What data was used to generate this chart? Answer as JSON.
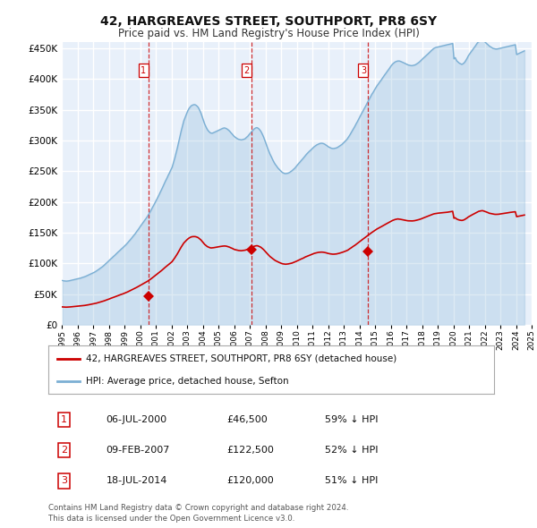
{
  "title": "42, HARGREAVES STREET, SOUTHPORT, PR8 6SY",
  "subtitle": "Price paid vs. HM Land Registry's House Price Index (HPI)",
  "title_fontsize": 10,
  "subtitle_fontsize": 8.5,
  "ylim": [
    0,
    460000
  ],
  "yticks": [
    0,
    50000,
    100000,
    150000,
    200000,
    250000,
    300000,
    350000,
    400000,
    450000
  ],
  "bg_color": "#ffffff",
  "plot_bg_color": "#e8f0fa",
  "grid_color": "#ffffff",
  "hpi_color": "#7bafd4",
  "price_color": "#cc0000",
  "legend_label_price": "42, HARGREAVES STREET, SOUTHPORT, PR8 6SY (detached house)",
  "legend_label_hpi": "HPI: Average price, detached house, Sefton",
  "transactions": [
    {
      "num": 1,
      "date": "06-JUL-2000",
      "year": 2000.52,
      "price": 46500,
      "pct": "59%",
      "dir": "↓"
    },
    {
      "num": 2,
      "date": "09-FEB-2007",
      "year": 2007.11,
      "price": 122500,
      "pct": "52%",
      "dir": "↓"
    },
    {
      "num": 3,
      "date": "18-JUL-2014",
      "year": 2014.55,
      "price": 120000,
      "pct": "51%",
      "dir": "↓"
    }
  ],
  "footer1": "Contains HM Land Registry data © Crown copyright and database right 2024.",
  "footer2": "This data is licensed under the Open Government Licence v3.0.",
  "hpi_data_years": [
    1995.04,
    1995.12,
    1995.21,
    1995.29,
    1995.38,
    1995.46,
    1995.54,
    1995.62,
    1995.71,
    1995.79,
    1995.88,
    1995.96,
    1996.04,
    1996.12,
    1996.21,
    1996.29,
    1996.38,
    1996.46,
    1996.54,
    1996.62,
    1996.71,
    1996.79,
    1996.88,
    1996.96,
    1997.04,
    1997.12,
    1997.21,
    1997.29,
    1997.38,
    1997.46,
    1997.54,
    1997.62,
    1997.71,
    1997.79,
    1997.88,
    1997.96,
    1998.04,
    1998.12,
    1998.21,
    1998.29,
    1998.38,
    1998.46,
    1998.54,
    1998.62,
    1998.71,
    1998.79,
    1998.88,
    1998.96,
    1999.04,
    1999.12,
    1999.21,
    1999.29,
    1999.38,
    1999.46,
    1999.54,
    1999.62,
    1999.71,
    1999.79,
    1999.88,
    1999.96,
    2000.04,
    2000.12,
    2000.21,
    2000.29,
    2000.38,
    2000.46,
    2000.54,
    2000.62,
    2000.71,
    2000.79,
    2000.88,
    2000.96,
    2001.04,
    2001.12,
    2001.21,
    2001.29,
    2001.38,
    2001.46,
    2001.54,
    2001.62,
    2001.71,
    2001.79,
    2001.88,
    2001.96,
    2002.04,
    2002.12,
    2002.21,
    2002.29,
    2002.38,
    2002.46,
    2002.54,
    2002.62,
    2002.71,
    2002.79,
    2002.88,
    2002.96,
    2003.04,
    2003.12,
    2003.21,
    2003.29,
    2003.38,
    2003.46,
    2003.54,
    2003.62,
    2003.71,
    2003.79,
    2003.88,
    2003.96,
    2004.04,
    2004.12,
    2004.21,
    2004.29,
    2004.38,
    2004.46,
    2004.54,
    2004.62,
    2004.71,
    2004.79,
    2004.88,
    2004.96,
    2005.04,
    2005.12,
    2005.21,
    2005.29,
    2005.38,
    2005.46,
    2005.54,
    2005.62,
    2005.71,
    2005.79,
    2005.88,
    2005.96,
    2006.04,
    2006.12,
    2006.21,
    2006.29,
    2006.38,
    2006.46,
    2006.54,
    2006.62,
    2006.71,
    2006.79,
    2006.88,
    2006.96,
    2007.04,
    2007.12,
    2007.21,
    2007.29,
    2007.38,
    2007.46,
    2007.54,
    2007.62,
    2007.71,
    2007.79,
    2007.88,
    2007.96,
    2008.04,
    2008.12,
    2008.21,
    2008.29,
    2008.38,
    2008.46,
    2008.54,
    2008.62,
    2008.71,
    2008.79,
    2008.88,
    2008.96,
    2009.04,
    2009.12,
    2009.21,
    2009.29,
    2009.38,
    2009.46,
    2009.54,
    2009.62,
    2009.71,
    2009.79,
    2009.88,
    2009.96,
    2010.04,
    2010.12,
    2010.21,
    2010.29,
    2010.38,
    2010.46,
    2010.54,
    2010.62,
    2010.71,
    2010.79,
    2010.88,
    2010.96,
    2011.04,
    2011.12,
    2011.21,
    2011.29,
    2011.38,
    2011.46,
    2011.54,
    2011.62,
    2011.71,
    2011.79,
    2011.88,
    2011.96,
    2012.04,
    2012.12,
    2012.21,
    2012.29,
    2012.38,
    2012.46,
    2012.54,
    2012.62,
    2012.71,
    2012.79,
    2012.88,
    2012.96,
    2013.04,
    2013.12,
    2013.21,
    2013.29,
    2013.38,
    2013.46,
    2013.54,
    2013.62,
    2013.71,
    2013.79,
    2013.88,
    2013.96,
    2014.04,
    2014.12,
    2014.21,
    2014.29,
    2014.38,
    2014.46,
    2014.54,
    2014.62,
    2014.71,
    2014.79,
    2014.88,
    2014.96,
    2015.04,
    2015.12,
    2015.21,
    2015.29,
    2015.38,
    2015.46,
    2015.54,
    2015.62,
    2015.71,
    2015.79,
    2015.88,
    2015.96,
    2016.04,
    2016.12,
    2016.21,
    2016.29,
    2016.38,
    2016.46,
    2016.54,
    2016.62,
    2016.71,
    2016.79,
    2016.88,
    2016.96,
    2017.04,
    2017.12,
    2017.21,
    2017.29,
    2017.38,
    2017.46,
    2017.54,
    2017.62,
    2017.71,
    2017.79,
    2017.88,
    2017.96,
    2018.04,
    2018.12,
    2018.21,
    2018.29,
    2018.38,
    2018.46,
    2018.54,
    2018.62,
    2018.71,
    2018.79,
    2018.88,
    2018.96,
    2019.04,
    2019.12,
    2019.21,
    2019.29,
    2019.38,
    2019.46,
    2019.54,
    2019.62,
    2019.71,
    2019.79,
    2019.88,
    2019.96,
    2020.04,
    2020.12,
    2020.21,
    2020.29,
    2020.38,
    2020.46,
    2020.54,
    2020.62,
    2020.71,
    2020.79,
    2020.88,
    2020.96,
    2021.04,
    2021.12,
    2021.21,
    2021.29,
    2021.38,
    2021.46,
    2021.54,
    2021.62,
    2021.71,
    2021.79,
    2021.88,
    2021.96,
    2022.04,
    2022.12,
    2022.21,
    2022.29,
    2022.38,
    2022.46,
    2022.54,
    2022.62,
    2022.71,
    2022.79,
    2022.88,
    2022.96,
    2023.04,
    2023.12,
    2023.21,
    2023.29,
    2023.38,
    2023.46,
    2023.54,
    2023.62,
    2023.71,
    2023.79,
    2023.88,
    2023.96,
    2024.04,
    2024.12,
    2024.21,
    2024.29,
    2024.38,
    2024.46,
    2024.54
  ],
  "hpi_data_values": [
    72000,
    71500,
    71200,
    71000,
    71200,
    71500,
    72000,
    72500,
    73000,
    73500,
    74000,
    74500,
    75000,
    75500,
    76000,
    76800,
    77500,
    78200,
    79000,
    80000,
    81000,
    82000,
    83000,
    84000,
    85000,
    86000,
    87500,
    89000,
    90500,
    92000,
    93500,
    95000,
    97000,
    99000,
    101000,
    103000,
    105000,
    107000,
    109000,
    111000,
    113000,
    115000,
    117000,
    119000,
    121000,
    123000,
    125000,
    127000,
    129000,
    131000,
    133500,
    136000,
    138500,
    141000,
    143500,
    146000,
    149000,
    152000,
    155000,
    158000,
    161000,
    164000,
    167000,
    170000,
    173000,
    176000,
    179500,
    183000,
    187000,
    191000,
    195000,
    199000,
    203000,
    207000,
    211500,
    216000,
    220500,
    225000,
    229500,
    234000,
    238500,
    243000,
    247500,
    252000,
    256000,
    263000,
    271000,
    279000,
    288000,
    297000,
    306000,
    315000,
    324000,
    332000,
    338000,
    343000,
    348000,
    352000,
    355000,
    357000,
    358000,
    358500,
    358000,
    356500,
    354000,
    350000,
    345000,
    339000,
    333000,
    327000,
    322000,
    318000,
    315000,
    313000,
    312000,
    312000,
    313000,
    314000,
    315000,
    316000,
    317000,
    318000,
    319000,
    320000,
    320500,
    320000,
    319000,
    317500,
    315500,
    313000,
    310500,
    308000,
    306000,
    304500,
    303000,
    302000,
    301500,
    301000,
    301500,
    302000,
    303000,
    305000,
    307000,
    309500,
    312000,
    314500,
    317000,
    319000,
    320500,
    321000,
    320000,
    318000,
    315000,
    311000,
    306000,
    300500,
    295000,
    289000,
    283000,
    278000,
    273500,
    269000,
    265000,
    261500,
    258500,
    255500,
    253000,
    251000,
    249000,
    247500,
    246500,
    246000,
    246500,
    247000,
    248000,
    249500,
    251000,
    253000,
    255000,
    257500,
    260000,
    262500,
    265000,
    267500,
    270000,
    272500,
    275000,
    277500,
    280000,
    282000,
    284000,
    286000,
    288000,
    290000,
    291500,
    293000,
    294000,
    295000,
    295500,
    295500,
    295000,
    294000,
    292500,
    291000,
    289500,
    288500,
    287500,
    287000,
    287000,
    287500,
    288000,
    289000,
    290500,
    292000,
    293500,
    295500,
    297500,
    299500,
    302000,
    305000,
    308500,
    312000,
    315500,
    319000,
    323000,
    327000,
    331000,
    335000,
    339000,
    343000,
    347000,
    351000,
    355000,
    359000,
    363000,
    367000,
    371000,
    375000,
    378500,
    382000,
    385500,
    389000,
    392000,
    395000,
    398000,
    401000,
    404000,
    407000,
    410000,
    413000,
    416000,
    419000,
    422000,
    424500,
    426500,
    428000,
    429000,
    429500,
    429500,
    429000,
    428000,
    427000,
    426000,
    425000,
    424000,
    423000,
    422500,
    422000,
    422000,
    422500,
    423000,
    424000,
    425500,
    427000,
    429000,
    431000,
    433000,
    435000,
    437000,
    439000,
    441000,
    443000,
    445000,
    447000,
    449000,
    450500,
    451500,
    452000,
    452500,
    453000,
    453500,
    454000,
    454500,
    455000,
    455500,
    456000,
    456500,
    457000,
    457500,
    458000,
    433000,
    435000,
    430000,
    428000,
    426000,
    425000,
    424000,
    425000,
    427000,
    430000,
    434000,
    438000,
    441000,
    444000,
    447000,
    450000,
    453000,
    456000,
    459000,
    461000,
    462500,
    463500,
    463500,
    462000,
    460000,
    458000,
    456000,
    454000,
    452500,
    451000,
    450000,
    449500,
    449000,
    449000,
    449500,
    450000,
    450500,
    451000,
    451500,
    452000,
    452500,
    453000,
    453500,
    454000,
    454500,
    455000,
    455500,
    456000,
    440000,
    441000,
    442000,
    443000,
    444000,
    445000,
    446000
  ],
  "price_hpi_years": [
    1995.04,
    1995.12,
    1995.21,
    1995.29,
    1995.38,
    1995.46,
    1995.54,
    1995.62,
    1995.71,
    1995.79,
    1995.88,
    1995.96,
    1996.04,
    1996.12,
    1996.21,
    1996.29,
    1996.38,
    1996.46,
    1996.54,
    1996.62,
    1996.71,
    1996.79,
    1996.88,
    1996.96,
    1997.04,
    1997.12,
    1997.21,
    1997.29,
    1997.38,
    1997.46,
    1997.54,
    1997.62,
    1997.71,
    1997.79,
    1997.88,
    1997.96,
    1998.04,
    1998.12,
    1998.21,
    1998.29,
    1998.38,
    1998.46,
    1998.54,
    1998.62,
    1998.71,
    1998.79,
    1998.88,
    1998.96,
    1999.04,
    1999.12,
    1999.21,
    1999.29,
    1999.38,
    1999.46,
    1999.54,
    1999.62,
    1999.71,
    1999.79,
    1999.88,
    1999.96,
    2000.04,
    2000.12,
    2000.21,
    2000.29,
    2000.38,
    2000.46,
    2000.54,
    2000.62,
    2000.71,
    2000.79,
    2000.88,
    2000.96,
    2001.04,
    2001.12,
    2001.21,
    2001.29,
    2001.38,
    2001.46,
    2001.54,
    2001.62,
    2001.71,
    2001.79,
    2001.88,
    2001.96,
    2002.04,
    2002.12,
    2002.21,
    2002.29,
    2002.38,
    2002.46,
    2002.54,
    2002.62,
    2002.71,
    2002.79,
    2002.88,
    2002.96,
    2003.04,
    2003.12,
    2003.21,
    2003.29,
    2003.38,
    2003.46,
    2003.54,
    2003.62,
    2003.71,
    2003.79,
    2003.88,
    2003.96,
    2004.04,
    2004.12,
    2004.21,
    2004.29,
    2004.38,
    2004.46,
    2004.54,
    2004.62,
    2004.71,
    2004.79,
    2004.88,
    2004.96,
    2005.04,
    2005.12,
    2005.21,
    2005.29,
    2005.38,
    2005.46,
    2005.54,
    2005.62,
    2005.71,
    2005.79,
    2005.88,
    2005.96,
    2006.04,
    2006.12,
    2006.21,
    2006.29,
    2006.38,
    2006.46,
    2006.54,
    2006.62,
    2006.71,
    2006.79,
    2006.88,
    2006.96,
    2007.04,
    2007.12,
    2007.21,
    2007.29,
    2007.38,
    2007.46,
    2007.54,
    2007.62,
    2007.71,
    2007.79,
    2007.88,
    2007.96,
    2008.04,
    2008.12,
    2008.21,
    2008.29,
    2008.38,
    2008.46,
    2008.54,
    2008.62,
    2008.71,
    2008.79,
    2008.88,
    2008.96,
    2009.04,
    2009.12,
    2009.21,
    2009.29,
    2009.38,
    2009.46,
    2009.54,
    2009.62,
    2009.71,
    2009.79,
    2009.88,
    2009.96,
    2010.04,
    2010.12,
    2010.21,
    2010.29,
    2010.38,
    2010.46,
    2010.54,
    2010.62,
    2010.71,
    2010.79,
    2010.88,
    2010.96,
    2011.04,
    2011.12,
    2011.21,
    2011.29,
    2011.38,
    2011.46,
    2011.54,
    2011.62,
    2011.71,
    2011.79,
    2011.88,
    2011.96,
    2012.04,
    2012.12,
    2012.21,
    2012.29,
    2012.38,
    2012.46,
    2012.54,
    2012.62,
    2012.71,
    2012.79,
    2012.88,
    2012.96,
    2013.04,
    2013.12,
    2013.21,
    2013.29,
    2013.38,
    2013.46,
    2013.54,
    2013.62,
    2013.71,
    2013.79,
    2013.88,
    2013.96,
    2014.04,
    2014.12,
    2014.21,
    2014.29,
    2014.38,
    2014.46,
    2014.54,
    2014.62,
    2014.71,
    2014.79,
    2014.88,
    2014.96,
    2015.04,
    2015.12,
    2015.21,
    2015.29,
    2015.38,
    2015.46,
    2015.54,
    2015.62,
    2015.71,
    2015.79,
    2015.88,
    2015.96,
    2016.04,
    2016.12,
    2016.21,
    2016.29,
    2016.38,
    2016.46,
    2016.54,
    2016.62,
    2016.71,
    2016.79,
    2016.88,
    2016.96,
    2017.04,
    2017.12,
    2017.21,
    2017.29,
    2017.38,
    2017.46,
    2017.54,
    2017.62,
    2017.71,
    2017.79,
    2017.88,
    2017.96,
    2018.04,
    2018.12,
    2018.21,
    2018.29,
    2018.38,
    2018.46,
    2018.54,
    2018.62,
    2018.71,
    2018.79,
    2018.88,
    2018.96,
    2019.04,
    2019.12,
    2019.21,
    2019.29,
    2019.38,
    2019.46,
    2019.54,
    2019.62,
    2019.71,
    2019.79,
    2019.88,
    2019.96,
    2020.04,
    2020.12,
    2020.21,
    2020.29,
    2020.38,
    2020.46,
    2020.54,
    2020.62,
    2020.71,
    2020.79,
    2020.88,
    2020.96,
    2021.04,
    2021.12,
    2021.21,
    2021.29,
    2021.38,
    2021.46,
    2021.54,
    2021.62,
    2021.71,
    2021.79,
    2021.88,
    2021.96,
    2022.04,
    2022.12,
    2022.21,
    2022.29,
    2022.38,
    2022.46,
    2022.54,
    2022.62,
    2022.71,
    2022.79,
    2022.88,
    2022.96,
    2023.04,
    2023.12,
    2023.21,
    2023.29,
    2023.38,
    2023.46,
    2023.54,
    2023.62,
    2023.71,
    2023.79,
    2023.88,
    2023.96,
    2024.04,
    2024.12,
    2024.21,
    2024.29,
    2024.38,
    2024.46,
    2024.54
  ],
  "price_hpi_values": [
    29000,
    28800,
    28700,
    28600,
    28700,
    28800,
    29000,
    29200,
    29400,
    29600,
    29800,
    30000,
    30200,
    30400,
    30600,
    30900,
    31200,
    31400,
    31700,
    32100,
    32500,
    32900,
    33300,
    33700,
    34100,
    34500,
    35100,
    35700,
    36300,
    36900,
    37500,
    38100,
    38900,
    39700,
    40500,
    41300,
    42000,
    42900,
    43700,
    44500,
    45300,
    46100,
    46900,
    47700,
    48500,
    49300,
    50000,
    50900,
    51700,
    52500,
    53500,
    54500,
    55500,
    56500,
    57500,
    58500,
    59700,
    60900,
    62100,
    63300,
    64500,
    65700,
    67000,
    68100,
    69300,
    70500,
    71900,
    73300,
    74900,
    76500,
    78100,
    79700,
    81400,
    83000,
    84800,
    86600,
    88400,
    90200,
    92000,
    93800,
    95600,
    97400,
    99200,
    101000,
    102600,
    105400,
    108600,
    111800,
    115400,
    119000,
    122600,
    126200,
    129900,
    133000,
    135500,
    137500,
    139400,
    141000,
    142300,
    143200,
    143500,
    143600,
    143400,
    142800,
    141800,
    140200,
    138200,
    135900,
    133400,
    130900,
    128900,
    127300,
    126200,
    125400,
    125000,
    125200,
    125500,
    125900,
    126300,
    126700,
    127100,
    127400,
    127800,
    128000,
    128200,
    128100,
    127700,
    127000,
    126300,
    125300,
    124400,
    123300,
    122400,
    121900,
    121300,
    120900,
    120700,
    120500,
    120800,
    121100,
    121400,
    122100,
    123000,
    123900,
    124900,
    126100,
    127000,
    127800,
    128400,
    128700,
    128200,
    127200,
    126200,
    124500,
    122500,
    120200,
    118000,
    115800,
    113300,
    111200,
    109500,
    107800,
    106200,
    104700,
    103500,
    102400,
    101400,
    100500,
    99700,
    99100,
    98700,
    98500,
    98700,
    99000,
    99400,
    99900,
    100500,
    101300,
    102100,
    103100,
    104100,
    105100,
    106100,
    107100,
    108000,
    109000,
    110200,
    111000,
    112000,
    112800,
    113600,
    114500,
    115400,
    116200,
    116800,
    117400,
    117800,
    118000,
    118200,
    118200,
    118000,
    117600,
    117100,
    116400,
    115900,
    115500,
    115100,
    114900,
    114900,
    115100,
    115300,
    115700,
    116300,
    116900,
    117500,
    118300,
    119100,
    119900,
    120800,
    121900,
    123600,
    124900,
    126400,
    127800,
    129200,
    130800,
    132600,
    134200,
    135900,
    137500,
    139000,
    140500,
    142100,
    143700,
    145300,
    146900,
    148500,
    150100,
    151600,
    153000,
    154400,
    155800,
    157000,
    158200,
    159400,
    160500,
    161700,
    162800,
    164100,
    165200,
    166500,
    167600,
    168800,
    169800,
    170700,
    171400,
    171900,
    172300,
    171900,
    171700,
    171200,
    170700,
    170300,
    169900,
    169500,
    169200,
    169100,
    168900,
    169000,
    169200,
    169500,
    170000,
    170600,
    171100,
    171800,
    172500,
    173400,
    174200,
    175100,
    175900,
    176700,
    177500,
    178300,
    179200,
    180100,
    180700,
    181100,
    181400,
    181700,
    181900,
    182100,
    182400,
    182700,
    182800,
    182900,
    183200,
    183600,
    183900,
    184300,
    184700,
    173400,
    174200,
    172200,
    171300,
    170500,
    170200,
    169800,
    170200,
    171100,
    172400,
    173900,
    175500,
    176700,
    178000,
    179100,
    180200,
    181500,
    182500,
    183800,
    184600,
    185200,
    185600,
    185700,
    185000,
    184200,
    183500,
    182600,
    181600,
    181100,
    180500,
    180100,
    179900,
    179700,
    179800,
    179900,
    180200,
    180500,
    180800,
    181200,
    181500,
    181900,
    182200,
    182600,
    182900,
    183200,
    183500,
    183800,
    184000,
    176000,
    176400,
    176900,
    177300,
    177700,
    178200,
    178600
  ]
}
